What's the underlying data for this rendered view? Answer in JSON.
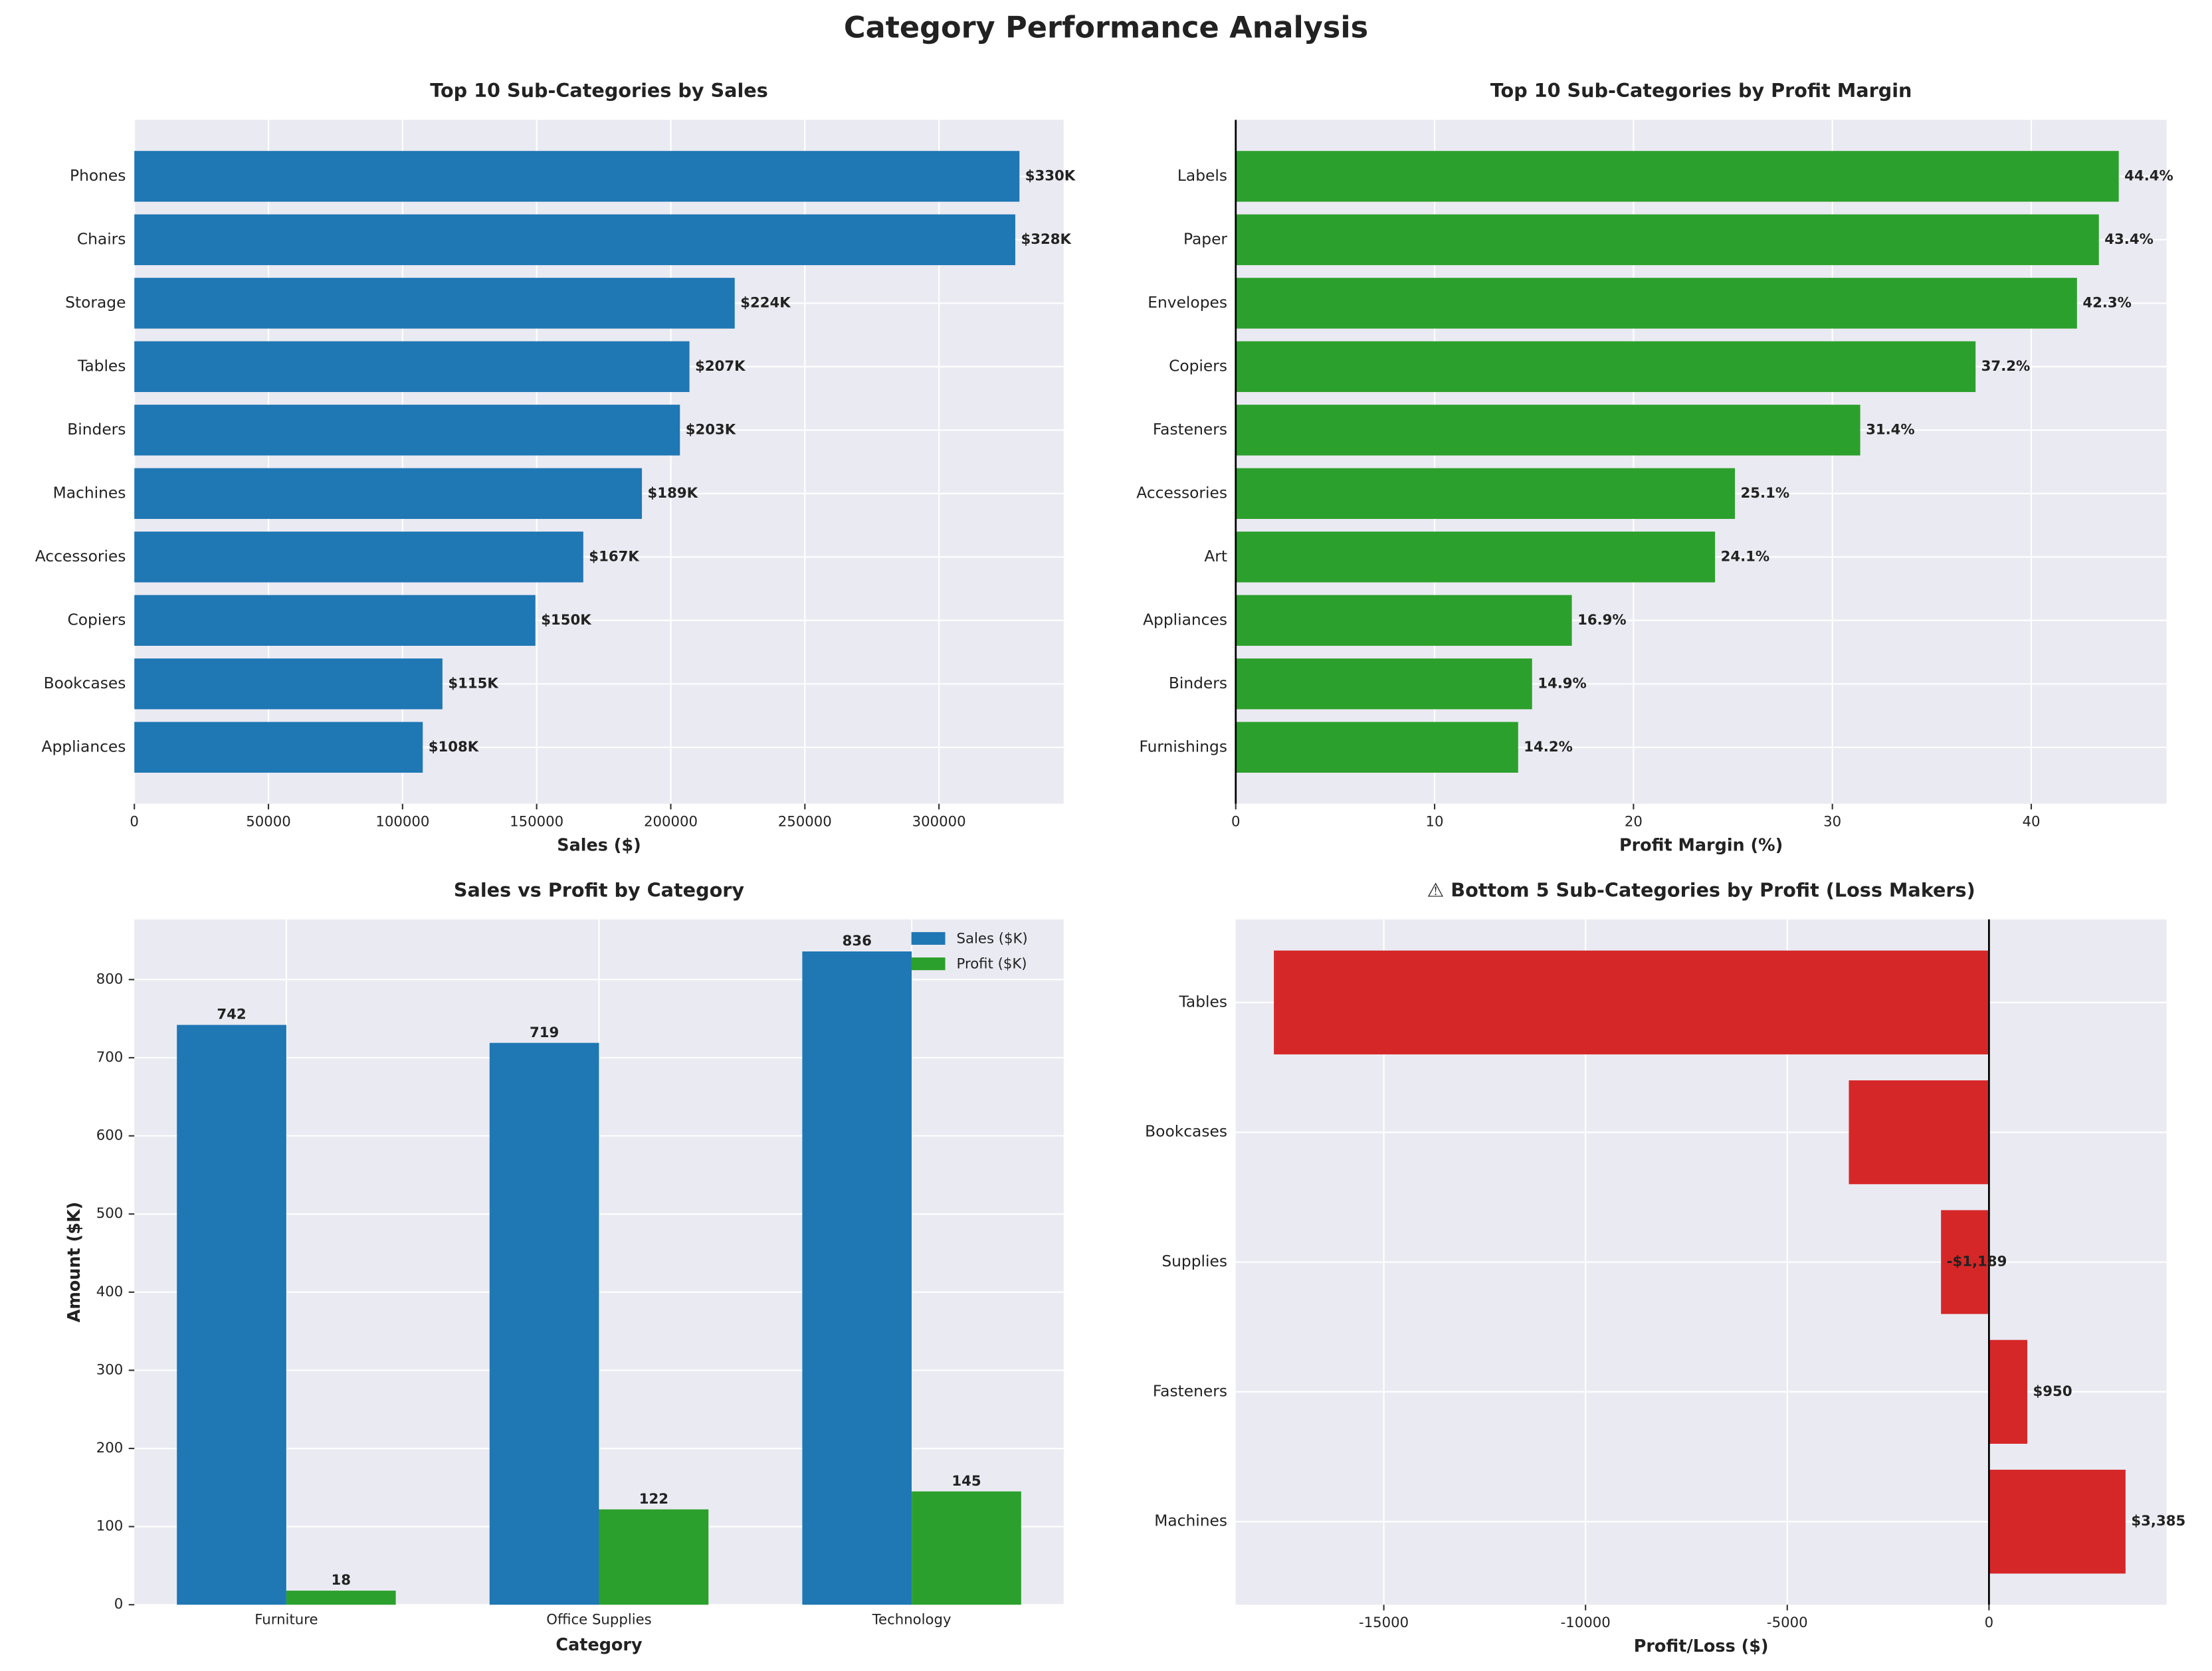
{
  "title": "Category Performance Analysis",
  "chart_data": [
    {
      "type": "bar",
      "horizontal": true,
      "title": "Top 10 Sub-Categories by Sales",
      "x_label": "Sales ($)",
      "categories": [
        "Phones",
        "Chairs",
        "Storage",
        "Tables",
        "Binders",
        "Machines",
        "Accessories",
        "Copiers",
        "Bookcases",
        "Appliances"
      ],
      "values": [
        330007,
        328449,
        223844,
        206966,
        203413,
        189239,
        167380,
        149528,
        114880,
        107532
      ],
      "value_labels": [
        "$330K",
        "$328K",
        "$224K",
        "$207K",
        "$203K",
        "$189K",
        "$167K",
        "$150K",
        "$115K",
        "$108K"
      ],
      "color": "#1f77b4",
      "xlim": [
        0,
        346500
      ],
      "xticks": [
        0,
        50000,
        100000,
        150000,
        200000,
        250000,
        300000
      ],
      "grid": true
    },
    {
      "type": "bar",
      "horizontal": true,
      "title": "Top 10 Sub-Categories by Profit Margin",
      "x_label": "Profit Margin (%)",
      "categories": [
        "Labels",
        "Paper",
        "Envelopes",
        "Copiers",
        "Fasteners",
        "Accessories",
        "Art",
        "Appliances",
        "Binders",
        "Furnishings"
      ],
      "values": [
        44.4,
        43.4,
        42.3,
        37.2,
        31.4,
        25.1,
        24.1,
        16.9,
        14.9,
        14.2
      ],
      "value_labels": [
        "44.4%",
        "43.4%",
        "42.3%",
        "37.2%",
        "31.4%",
        "25.1%",
        "24.1%",
        "16.9%",
        "14.9%",
        "14.2%"
      ],
      "color": "#2ca02c",
      "xlim": [
        0,
        46.8
      ],
      "xticks": [
        0,
        10,
        20,
        30,
        40
      ],
      "grid": true,
      "zero_line": true
    },
    {
      "type": "bar",
      "title": "Sales vs Profit by Category",
      "x_label": "Category",
      "y_label": "Amount ($K)",
      "categories": [
        "Furniture",
        "Office Supplies",
        "Technology"
      ],
      "series": [
        {
          "name": "Sales ($K)",
          "color": "#1f77b4",
          "values": [
            742,
            719,
            836
          ]
        },
        {
          "name": "Profit ($K)",
          "color": "#2ca02c",
          "values": [
            18,
            122,
            145
          ]
        }
      ],
      "ylim": [
        0,
        877
      ],
      "yticks": [
        0,
        100,
        200,
        300,
        400,
        500,
        600,
        700,
        800
      ],
      "grid": true,
      "legend": "upper right"
    },
    {
      "type": "bar",
      "horizontal": true,
      "title": "⚠ Bottom 5 Sub-Categories by Profit (Loss Makers)",
      "x_label": "Profit/Loss ($)",
      "categories": [
        "Tables",
        "Bookcases",
        "Supplies",
        "Fasteners",
        "Machines"
      ],
      "values": [
        -17725,
        -3473,
        -1189,
        950,
        3385
      ],
      "value_labels": [
        null,
        null,
        "-$1,189",
        "$950",
        "$3,385"
      ],
      "label_color": "#d62728",
      "color": "#d62728",
      "xlim": [
        -18670,
        4400
      ],
      "xticks": [
        -15000,
        -10000,
        -5000,
        0
      ],
      "grid": true,
      "zero_line": true
    }
  ]
}
